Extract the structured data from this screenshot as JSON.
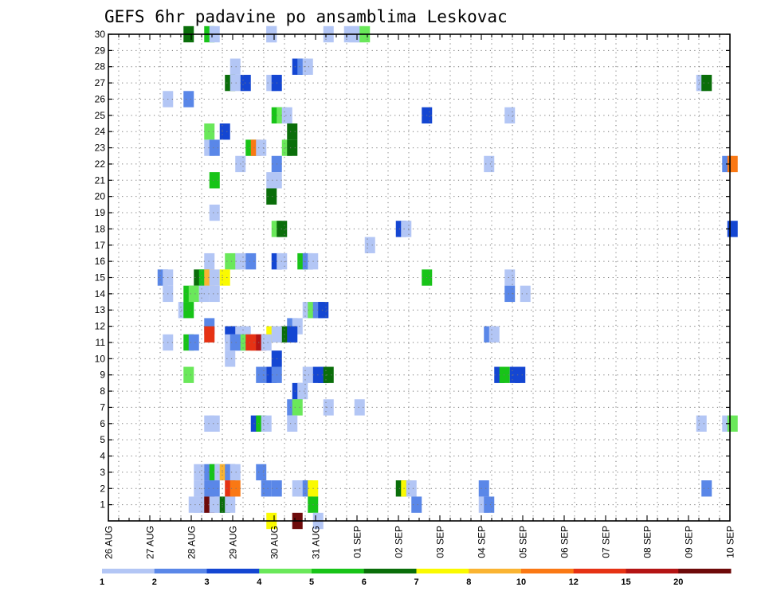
{
  "chart_data": {
    "type": "heatmap",
    "title": "GEFS 6hr padavine po ansamblima Leskovac",
    "x_tick_labels": [
      "26 AUG",
      "27 AUG",
      "28 AUG",
      "29 AUG",
      "30 AUG",
      "31 AUG",
      "01 SEP",
      "02 SEP",
      "03 SEP",
      "04 SEP",
      "05 SEP",
      "06 SEP",
      "07 SEP",
      "08 SEP",
      "09 SEP",
      "10 SEP"
    ],
    "y_tick_labels": [
      "1",
      "2",
      "3",
      "4",
      "5",
      "6",
      "7",
      "8",
      "9",
      "10",
      "11",
      "12",
      "13",
      "14",
      "15",
      "16",
      "17",
      "18",
      "19",
      "20",
      "21",
      "22",
      "23",
      "24",
      "25",
      "26",
      "27",
      "28",
      "29",
      "30"
    ],
    "x_unit": "6-hour step from 26 AUG 00Z",
    "y_unit": "ensemble member",
    "xlim": [
      0,
      60
    ],
    "ylim": [
      0,
      30
    ],
    "grid": true,
    "legend": {
      "placement": "bottom",
      "labels": [
        "1",
        "2",
        "3",
        "4",
        "5",
        "6",
        "7",
        "8",
        "10",
        "12",
        "15",
        "20"
      ],
      "colors": [
        "#b3c6f5",
        "#5a87e8",
        "#1446d2",
        "#6ae85a",
        "#18c418",
        "#0a6e0a",
        "#fafa00",
        "#fab432",
        "#fa7814",
        "#e63214",
        "#b41414",
        "#6e0a0a"
      ]
    },
    "cells": [
      {
        "x": 7.5,
        "y": 30,
        "class": 6
      },
      {
        "x": 9.5,
        "y": 30,
        "class": 5
      },
      {
        "x": 10,
        "y": 30,
        "class": 1
      },
      {
        "x": 15.5,
        "y": 30,
        "class": 1
      },
      {
        "x": 15.5,
        "y": 30,
        "class": 1
      },
      {
        "x": 21,
        "y": 30,
        "class": 1
      },
      {
        "x": 23,
        "y": 30,
        "class": 1
      },
      {
        "x": 23.5,
        "y": 30,
        "class": 1
      },
      {
        "x": 24,
        "y": 30,
        "class": 1
      },
      {
        "x": 24.5,
        "y": 30,
        "class": 4
      },
      {
        "x": 12,
        "y": 28,
        "class": 1
      },
      {
        "x": 18,
        "y": 28,
        "class": 3
      },
      {
        "x": 18.5,
        "y": 28,
        "class": 2
      },
      {
        "x": 19,
        "y": 28,
        "class": 1
      },
      {
        "x": 11.5,
        "y": 27,
        "class": 6
      },
      {
        "x": 12,
        "y": 27,
        "class": 1
      },
      {
        "x": 13,
        "y": 27,
        "class": 3
      },
      {
        "x": 15.5,
        "y": 27,
        "class": 1
      },
      {
        "x": 16,
        "y": 27,
        "class": 3
      },
      {
        "x": 57,
        "y": 27,
        "class": 1
      },
      {
        "x": 57.5,
        "y": 27,
        "class": 6
      },
      {
        "x": 5.5,
        "y": 26,
        "class": 1
      },
      {
        "x": 7.5,
        "y": 26,
        "class": 2
      },
      {
        "x": 16,
        "y": 25,
        "class": 5
      },
      {
        "x": 16.5,
        "y": 25,
        "class": 4
      },
      {
        "x": 17,
        "y": 25,
        "class": 1
      },
      {
        "x": 30.5,
        "y": 25,
        "class": 3
      },
      {
        "x": 38.5,
        "y": 25,
        "class": 1
      },
      {
        "x": 9.5,
        "y": 24,
        "class": 4
      },
      {
        "x": 11,
        "y": 24,
        "class": 3
      },
      {
        "x": 17.5,
        "y": 24,
        "class": 6
      },
      {
        "x": 9.5,
        "y": 23,
        "class": 1
      },
      {
        "x": 10,
        "y": 23,
        "class": 2
      },
      {
        "x": 13.5,
        "y": 23,
        "class": 5
      },
      {
        "x": 14,
        "y": 23,
        "class": 9
      },
      {
        "x": 14.5,
        "y": 23,
        "class": 1
      },
      {
        "x": 17,
        "y": 23,
        "class": 4
      },
      {
        "x": 17.5,
        "y": 23,
        "class": 6
      },
      {
        "x": 12.5,
        "y": 22,
        "class": 1
      },
      {
        "x": 16,
        "y": 22,
        "class": 2
      },
      {
        "x": 36.5,
        "y": 22,
        "class": 1
      },
      {
        "x": 59.5,
        "y": 22,
        "class": 2
      },
      {
        "x": 60,
        "y": 22,
        "class": 9
      },
      {
        "x": 10,
        "y": 21,
        "class": 5
      },
      {
        "x": 15.5,
        "y": 21,
        "class": 1
      },
      {
        "x": 16,
        "y": 21,
        "class": 1
      },
      {
        "x": 15.5,
        "y": 20,
        "class": 6
      },
      {
        "x": 10,
        "y": 19,
        "class": 1
      },
      {
        "x": 16,
        "y": 18,
        "class": 4
      },
      {
        "x": 16.5,
        "y": 18,
        "class": 6
      },
      {
        "x": 28,
        "y": 18,
        "class": 3
      },
      {
        "x": 28.5,
        "y": 18,
        "class": 1
      },
      {
        "x": 60,
        "y": 18,
        "class": 3
      },
      {
        "x": 25,
        "y": 17,
        "class": 1
      },
      {
        "x": 9.5,
        "y": 16,
        "class": 1
      },
      {
        "x": 11.5,
        "y": 16,
        "class": 4
      },
      {
        "x": 12,
        "y": 16,
        "class": 4
      },
      {
        "x": 12.5,
        "y": 16,
        "class": 1
      },
      {
        "x": 13.5,
        "y": 16,
        "class": 2
      },
      {
        "x": 16,
        "y": 16,
        "class": 3
      },
      {
        "x": 16.5,
        "y": 16,
        "class": 1
      },
      {
        "x": 18.5,
        "y": 16,
        "class": 5
      },
      {
        "x": 19,
        "y": 16,
        "class": 2
      },
      {
        "x": 19.5,
        "y": 16,
        "class": 1
      },
      {
        "x": 5,
        "y": 15,
        "class": 2
      },
      {
        "x": 5.5,
        "y": 15,
        "class": 1
      },
      {
        "x": 8.5,
        "y": 15,
        "class": 6
      },
      {
        "x": 9,
        "y": 15,
        "class": 5
      },
      {
        "x": 9.5,
        "y": 15,
        "class": 8
      },
      {
        "x": 10,
        "y": 15,
        "class": 1
      },
      {
        "x": 11,
        "y": 15,
        "class": 7
      },
      {
        "x": 30.5,
        "y": 15,
        "class": 5
      },
      {
        "x": 38.5,
        "y": 15,
        "class": 1
      },
      {
        "x": 5.5,
        "y": 14,
        "class": 1
      },
      {
        "x": 7.5,
        "y": 14,
        "class": 5
      },
      {
        "x": 8,
        "y": 14,
        "class": 4
      },
      {
        "x": 9,
        "y": 14,
        "class": 1
      },
      {
        "x": 10,
        "y": 14,
        "class": 1
      },
      {
        "x": 38.5,
        "y": 14,
        "class": 2
      },
      {
        "x": 40,
        "y": 14,
        "class": 1
      },
      {
        "x": 7,
        "y": 13,
        "class": 1
      },
      {
        "x": 7.5,
        "y": 13,
        "class": 5
      },
      {
        "x": 19,
        "y": 13,
        "class": 1
      },
      {
        "x": 19.5,
        "y": 13,
        "class": 4
      },
      {
        "x": 20,
        "y": 13,
        "class": 2
      },
      {
        "x": 20.5,
        "y": 13,
        "class": 3
      },
      {
        "x": 9.5,
        "y": 12,
        "class": 2
      },
      {
        "x": 17.5,
        "y": 12,
        "class": 2
      },
      {
        "x": 18,
        "y": 12,
        "class": 1
      },
      {
        "x": 9.5,
        "y": 11.5,
        "class": 10
      },
      {
        "x": 11.5,
        "y": 11.5,
        "class": 3
      },
      {
        "x": 12,
        "y": 11.5,
        "class": 3
      },
      {
        "x": 12.5,
        "y": 11.5,
        "class": 1
      },
      {
        "x": 13,
        "y": 11.5,
        "class": 1
      },
      {
        "x": 15.5,
        "y": 11.5,
        "class": 7
      },
      {
        "x": 16,
        "y": 11.5,
        "class": 1
      },
      {
        "x": 17,
        "y": 11.5,
        "class": 6
      },
      {
        "x": 17.5,
        "y": 11.5,
        "class": 3
      },
      {
        "x": 36.5,
        "y": 11.5,
        "class": 2
      },
      {
        "x": 37,
        "y": 11.5,
        "class": 1
      },
      {
        "x": 5.5,
        "y": 11,
        "class": 1
      },
      {
        "x": 7.5,
        "y": 11,
        "class": 5
      },
      {
        "x": 8,
        "y": 11,
        "class": 2
      },
      {
        "x": 11.5,
        "y": 11,
        "class": 1
      },
      {
        "x": 12,
        "y": 11,
        "class": 2
      },
      {
        "x": 12.5,
        "y": 11,
        "class": 2
      },
      {
        "x": 13,
        "y": 11,
        "class": 4
      },
      {
        "x": 13.5,
        "y": 11,
        "class": 10
      },
      {
        "x": 14,
        "y": 11,
        "class": 10
      },
      {
        "x": 14.5,
        "y": 11,
        "class": 11
      },
      {
        "x": 15,
        "y": 11,
        "class": 1
      },
      {
        "x": 11.5,
        "y": 10,
        "class": 1
      },
      {
        "x": 16,
        "y": 10,
        "class": 3
      },
      {
        "x": 7.5,
        "y": 9,
        "class": 4
      },
      {
        "x": 14.5,
        "y": 9,
        "class": 2
      },
      {
        "x": 15.5,
        "y": 9,
        "class": 3
      },
      {
        "x": 16,
        "y": 9,
        "class": 2
      },
      {
        "x": 19,
        "y": 9,
        "class": 1
      },
      {
        "x": 20,
        "y": 9,
        "class": 3
      },
      {
        "x": 20.5,
        "y": 9,
        "class": 3
      },
      {
        "x": 21,
        "y": 9,
        "class": 6
      },
      {
        "x": 37.5,
        "y": 9,
        "class": 3
      },
      {
        "x": 38,
        "y": 9,
        "class": 5
      },
      {
        "x": 39,
        "y": 9,
        "class": 3
      },
      {
        "x": 39.5,
        "y": 9,
        "class": 3
      },
      {
        "x": 18,
        "y": 8,
        "class": 3
      },
      {
        "x": 18.5,
        "y": 8,
        "class": 1
      },
      {
        "x": 17.5,
        "y": 7,
        "class": 2
      },
      {
        "x": 18,
        "y": 7,
        "class": 4
      },
      {
        "x": 21,
        "y": 7,
        "class": 1
      },
      {
        "x": 24,
        "y": 7,
        "class": 1
      },
      {
        "x": 9.5,
        "y": 6,
        "class": 1
      },
      {
        "x": 10,
        "y": 6,
        "class": 1
      },
      {
        "x": 14,
        "y": 6,
        "class": 3
      },
      {
        "x": 14.5,
        "y": 6,
        "class": 5
      },
      {
        "x": 15,
        "y": 6,
        "class": 1
      },
      {
        "x": 17.5,
        "y": 6,
        "class": 1
      },
      {
        "x": 57,
        "y": 6,
        "class": 1
      },
      {
        "x": 59.5,
        "y": 6,
        "class": 1
      },
      {
        "x": 60,
        "y": 6,
        "class": 4
      },
      {
        "x": 8.5,
        "y": 3,
        "class": 1
      },
      {
        "x": 9.5,
        "y": 3,
        "class": 2
      },
      {
        "x": 10,
        "y": 3,
        "class": 5
      },
      {
        "x": 10.5,
        "y": 3,
        "class": 1
      },
      {
        "x": 11,
        "y": 3,
        "class": 8
      },
      {
        "x": 11.5,
        "y": 3,
        "class": 2
      },
      {
        "x": 12,
        "y": 3,
        "class": 1
      },
      {
        "x": 14.5,
        "y": 3,
        "class": 2
      },
      {
        "x": 8.5,
        "y": 2,
        "class": 1
      },
      {
        "x": 9.5,
        "y": 2,
        "class": 2
      },
      {
        "x": 10,
        "y": 2,
        "class": 2
      },
      {
        "x": 11.5,
        "y": 2,
        "class": 10
      },
      {
        "x": 12,
        "y": 2,
        "class": 9
      },
      {
        "x": 15,
        "y": 2,
        "class": 2
      },
      {
        "x": 16,
        "y": 2,
        "class": 2
      },
      {
        "x": 18,
        "y": 2,
        "class": 1
      },
      {
        "x": 18.5,
        "y": 2,
        "class": 1
      },
      {
        "x": 19,
        "y": 2,
        "class": 2
      },
      {
        "x": 19.5,
        "y": 2,
        "class": 7
      },
      {
        "x": 28,
        "y": 2,
        "class": 6
      },
      {
        "x": 28.5,
        "y": 2,
        "class": 7
      },
      {
        "x": 29,
        "y": 2,
        "class": 1
      },
      {
        "x": 36,
        "y": 2,
        "class": 2
      },
      {
        "x": 57.5,
        "y": 2,
        "class": 2
      },
      {
        "x": 8,
        "y": 1,
        "class": 1
      },
      {
        "x": 8.5,
        "y": 1,
        "class": 1
      },
      {
        "x": 9,
        "y": 1,
        "class": 1
      },
      {
        "x": 9.5,
        "y": 1,
        "class": 12
      },
      {
        "x": 10,
        "y": 1,
        "class": 1
      },
      {
        "x": 10.5,
        "y": 1,
        "class": 1
      },
      {
        "x": 11,
        "y": 1,
        "class": 6
      },
      {
        "x": 11.5,
        "y": 1,
        "class": 1
      },
      {
        "x": 19.5,
        "y": 1,
        "class": 5
      },
      {
        "x": 29.5,
        "y": 1,
        "class": 2
      },
      {
        "x": 36,
        "y": 1,
        "class": 1
      },
      {
        "x": 36.5,
        "y": 1,
        "class": 2
      },
      {
        "x": 15.5,
        "y": 0,
        "class": 7
      },
      {
        "x": 18,
        "y": 0,
        "class": 12
      },
      {
        "x": 20,
        "y": 0,
        "class": 1
      }
    ]
  }
}
